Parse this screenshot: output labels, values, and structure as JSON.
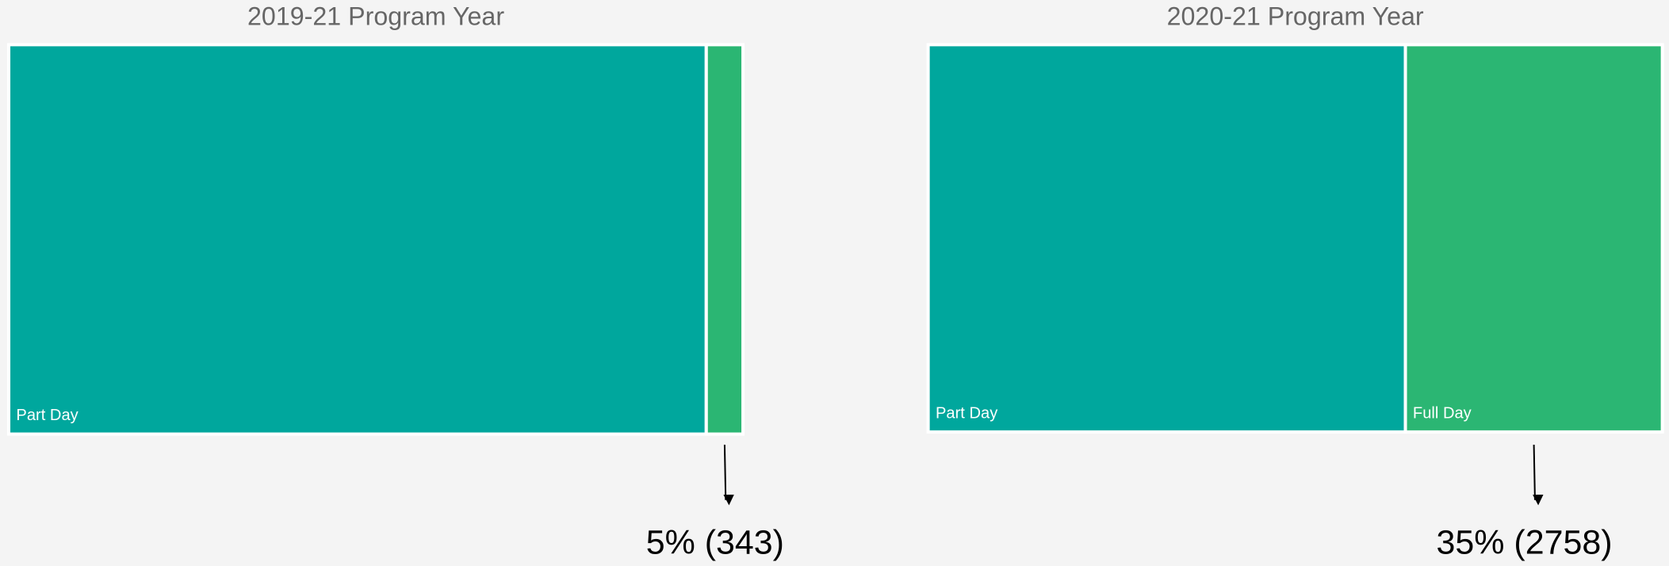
{
  "chart_data": [
    {
      "type": "treemap",
      "title": "2019-21 Program Year",
      "categories": [
        "Part Day",
        null
      ],
      "values": [
        95,
        5
      ],
      "colors": [
        "#00a79d",
        "#2bb673"
      ],
      "annotation": "5% (343)"
    },
    {
      "type": "treemap",
      "title": "2020-21 Program Year",
      "categories": [
        "Part Day",
        "Full Day"
      ],
      "values": [
        65,
        35
      ],
      "colors": [
        "#00a79d",
        "#2bb673"
      ],
      "annotation": "35% (2758)"
    }
  ]
}
